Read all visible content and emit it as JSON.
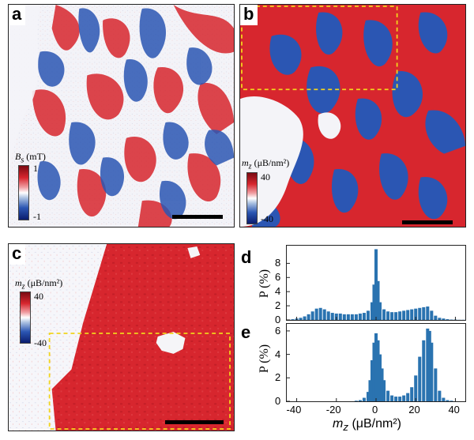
{
  "panels": {
    "a": {
      "label": "a",
      "colorbar": {
        "symbol": "B",
        "subscript": "s",
        "unit": " (mT)",
        "max_label": "1",
        "min_label": "-1"
      }
    },
    "b": {
      "label": "b",
      "colorbar": {
        "symbol": "m",
        "subscript": "z",
        "unit": " (μB/nm²)",
        "max_label": "40",
        "min_label": "-40"
      }
    },
    "c": {
      "label": "c",
      "colorbar": {
        "symbol": "m",
        "subscript": "z",
        "unit": " (μB/nm²)",
        "max_label": "40",
        "min_label": "-40"
      }
    },
    "d": {
      "label": "d",
      "ylabel": "P (%)"
    },
    "e": {
      "label": "e",
      "ylabel": "P (%)"
    }
  },
  "colors": {
    "positive": "#d7262e",
    "negative": "#2b56b3",
    "neutral": "#ffffff",
    "highlight_box": "#f2d41c",
    "histogram_bar": "#2a73b0"
  },
  "chart_data": [
    {
      "panel": "d",
      "type": "bar",
      "xlabel": "",
      "ylabel": "P (%)",
      "xlim": [
        -45,
        45
      ],
      "ylim": [
        0,
        10.5
      ],
      "yticks": [
        0,
        2,
        4,
        6,
        8
      ],
      "xticks": [
        -40,
        -20,
        0,
        20,
        40
      ],
      "x": [
        -44,
        -42,
        -40,
        -38,
        -36,
        -34,
        -32,
        -30,
        -28,
        -26,
        -24,
        -22,
        -20,
        -18,
        -16,
        -14,
        -12,
        -10,
        -8,
        -6,
        -4,
        -2,
        -1,
        0,
        1,
        2,
        4,
        6,
        8,
        10,
        12,
        14,
        16,
        18,
        20,
        22,
        24,
        26,
        28,
        30,
        32,
        34,
        36,
        38,
        40,
        42,
        44
      ],
      "values": [
        0.05,
        0.1,
        0.2,
        0.3,
        0.5,
        0.8,
        1.2,
        1.6,
        1.7,
        1.5,
        1.2,
        1.0,
        0.9,
        0.9,
        0.8,
        0.8,
        0.8,
        0.8,
        0.9,
        1.0,
        1.3,
        2.5,
        5.0,
        10.0,
        5.5,
        2.5,
        1.5,
        1.2,
        1.1,
        1.1,
        1.2,
        1.3,
        1.4,
        1.5,
        1.6,
        1.7,
        1.8,
        1.9,
        1.3,
        0.6,
        0.3,
        0.2,
        0.1,
        0.05,
        0.05,
        0.02,
        0.02
      ]
    },
    {
      "panel": "e",
      "type": "bar",
      "xlabel": "m_z (μB/nm²)",
      "ylabel": "P (%)",
      "xlim": [
        -45,
        45
      ],
      "ylim": [
        0,
        6.6
      ],
      "yticks": [
        0,
        2,
        4,
        6
      ],
      "xticks": [
        -40,
        -20,
        0,
        20,
        40
      ],
      "x": [
        -10,
        -8,
        -6,
        -4,
        -3,
        -2,
        -1,
        0,
        1,
        2,
        3,
        4,
        6,
        8,
        10,
        12,
        14,
        16,
        18,
        20,
        22,
        24,
        26,
        27,
        28,
        30,
        32,
        34,
        36,
        38
      ],
      "values": [
        0.05,
        0.1,
        0.3,
        0.8,
        1.8,
        3.5,
        5.0,
        5.8,
        5.2,
        4.0,
        2.8,
        1.8,
        0.9,
        0.5,
        0.4,
        0.4,
        0.5,
        0.7,
        1.2,
        2.2,
        3.8,
        5.2,
        6.2,
        6.0,
        5.0,
        2.8,
        0.9,
        0.3,
        0.1,
        0.05
      ]
    }
  ],
  "axis": {
    "x_ticks": [
      "-40",
      "-20",
      "0",
      "20",
      "40"
    ],
    "xlabel_symbol": "m",
    "xlabel_sub": "z",
    "xlabel_unit": " (μB/nm²)"
  }
}
